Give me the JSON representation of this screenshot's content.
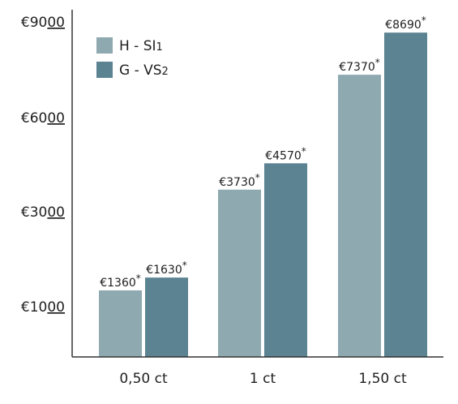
{
  "chart_data": {
    "type": "bar",
    "categories": [
      "0,50 ct",
      "1 ct",
      "1,50 ct"
    ],
    "series": [
      {
        "name": "H - SI1",
        "legend_label": "H - SI",
        "legend_sub": "1",
        "values": [
          1360,
          3730,
          7370
        ],
        "labels": [
          "€1360",
          "€3730",
          "€7370"
        ],
        "color": "#8FA9B1"
      },
      {
        "name": "G - VS2",
        "legend_label": "G - VS",
        "legend_sub": "2",
        "values": [
          1630,
          4570,
          8690
        ],
        "labels": [
          "€1630",
          "€4570",
          "€8690"
        ],
        "color": "#5B8391"
      }
    ],
    "label_suffix": "*",
    "y_ticks": [
      {
        "value": 1000,
        "prefix": "€10",
        "underlined": "00"
      },
      {
        "value": 3000,
        "prefix": "€30",
        "underlined": "00"
      },
      {
        "value": 6000,
        "prefix": "€60",
        "underlined": "00"
      },
      {
        "value": 9000,
        "prefix": "€90",
        "underlined": "00"
      }
    ],
    "ylim": [
      0,
      9000
    ],
    "legend_position": "top-left",
    "grid": false,
    "title": "",
    "xlabel": "",
    "ylabel": "",
    "axis_color": "#333333"
  }
}
